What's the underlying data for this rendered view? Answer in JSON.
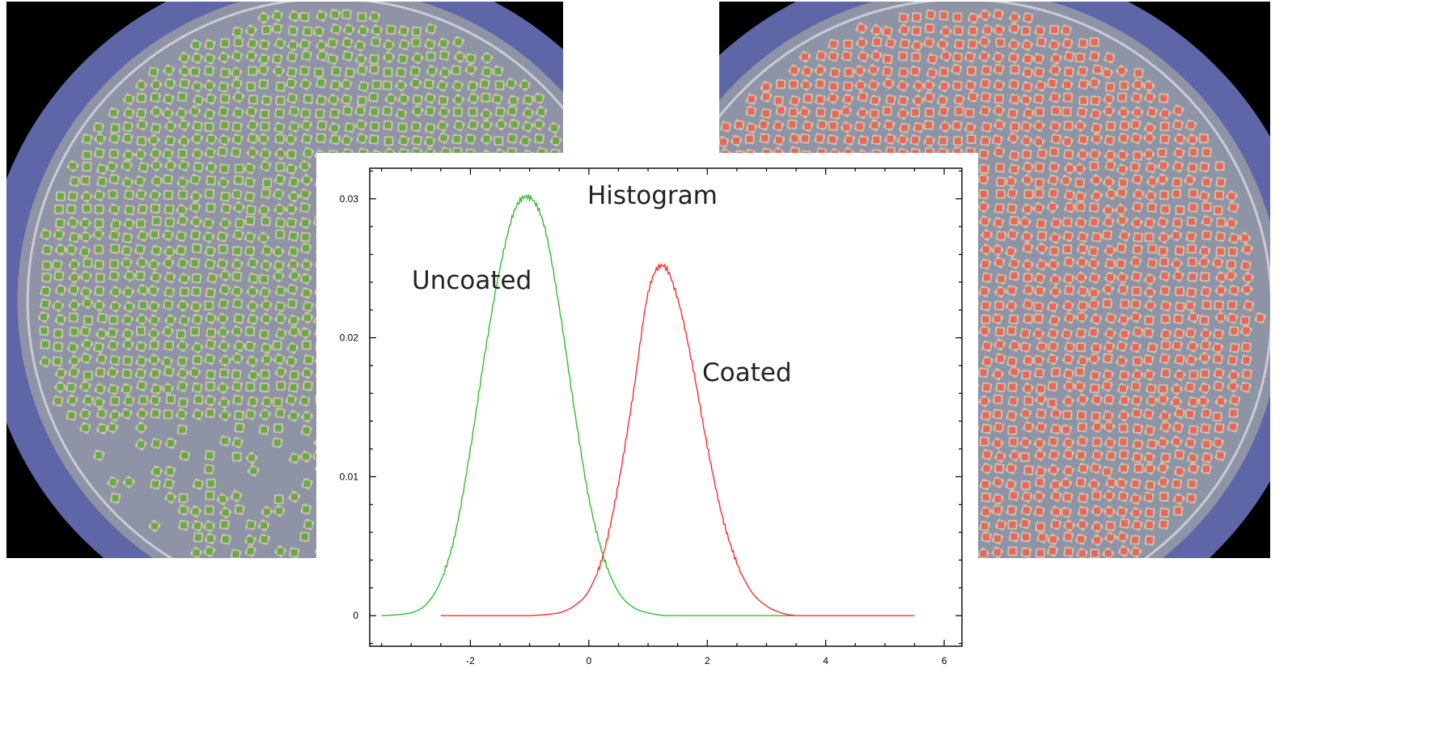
{
  "colors": {
    "background_blue": "#5f66a8",
    "dish_gray": "#8f93a6",
    "uncoated": "#2fbf2f",
    "coated": "#ff2b2b",
    "coated_particle": "#e8665a",
    "uncoated_particle": "#6aa84a"
  },
  "photos": {
    "left": {
      "particle_color_name": "green"
    },
    "right": {
      "particle_color_name": "red"
    }
  },
  "chart_data": {
    "type": "line",
    "title": "Histogram",
    "xlabel": "",
    "ylabel": "",
    "xlim": [
      -3.7,
      6.3
    ],
    "ylim": [
      -0.0022,
      0.0322
    ],
    "x_ticks": [
      -2,
      0,
      2,
      4,
      6
    ],
    "y_ticks": [
      0,
      0.01,
      0.02,
      0.03
    ],
    "x_tick_labels": [
      "-2",
      "0",
      "2",
      "4",
      "6"
    ],
    "y_tick_labels": [
      "0",
      "0.01",
      "0.02",
      "0.03"
    ],
    "grid": false,
    "series": [
      {
        "name": "Uncoated",
        "color": "#2fbf2f",
        "x": [
          -3.5,
          -3.0,
          -2.75,
          -2.5,
          -2.25,
          -2.0,
          -1.75,
          -1.5,
          -1.25,
          -1.0,
          -0.75,
          -0.5,
          -0.25,
          0.0,
          0.25,
          0.5,
          0.75,
          1.0,
          1.3,
          2.0,
          3.0,
          3.5
        ],
        "values": [
          0.0,
          0.0002,
          0.0008,
          0.0025,
          0.006,
          0.012,
          0.019,
          0.025,
          0.0292,
          0.0301,
          0.028,
          0.0222,
          0.015,
          0.0085,
          0.0042,
          0.0017,
          0.0006,
          0.0002,
          0.0,
          0.0,
          0.0,
          0.0
        ]
      },
      {
        "name": "Coated",
        "color": "#ff2b2b",
        "x": [
          -2.5,
          -1.0,
          -0.5,
          -0.25,
          0.0,
          0.25,
          0.5,
          0.75,
          1.0,
          1.25,
          1.5,
          1.75,
          2.0,
          2.25,
          2.5,
          2.75,
          3.0,
          3.25,
          3.5,
          4.0,
          5.5
        ],
        "values": [
          0.0,
          0.0,
          0.0002,
          0.0007,
          0.0018,
          0.0045,
          0.0095,
          0.016,
          0.0232,
          0.0252,
          0.0228,
          0.018,
          0.0122,
          0.0072,
          0.0038,
          0.0017,
          0.0007,
          0.0002,
          0.0,
          0.0,
          0.0
        ]
      }
    ],
    "annotations": [
      {
        "text": "Uncoated",
        "x": -3.0,
        "y": 0.0242
      },
      {
        "text": "Coated",
        "x": 1.85,
        "y": 0.0175
      }
    ]
  }
}
